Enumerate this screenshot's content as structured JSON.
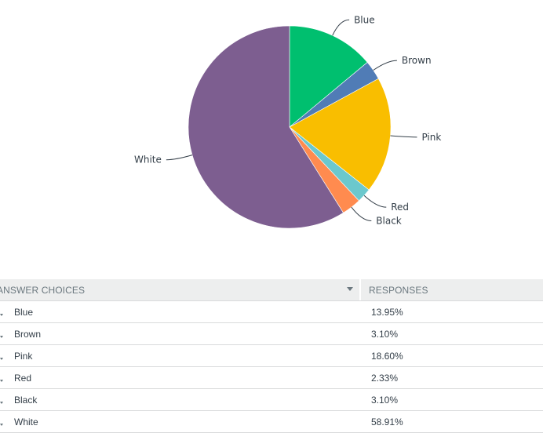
{
  "chart_data": {
    "type": "pie",
    "categories": [
      "Blue",
      "Brown",
      "Pink",
      "Red",
      "Black",
      "White"
    ],
    "values": [
      13.95,
      3.1,
      18.6,
      2.33,
      3.1,
      58.91
    ],
    "colors": [
      "#00bf6f",
      "#507cb6",
      "#f9be00",
      "#6bc8cd",
      "#ff8b4f",
      "#7d5e90"
    ],
    "title": "",
    "legend": "none"
  },
  "table": {
    "headers": {
      "choices": "Answer Choices",
      "responses": "Responses"
    },
    "rows": [
      {
        "label": "Blue",
        "value": "13.95%"
      },
      {
        "label": "Brown",
        "value": "3.10%"
      },
      {
        "label": "Pink",
        "value": "18.60%"
      },
      {
        "label": "Red",
        "value": "2.33%"
      },
      {
        "label": "Black",
        "value": "3.10%"
      },
      {
        "label": "White",
        "value": "58.91%"
      }
    ]
  },
  "icons": {
    "sort": "sort-down-icon",
    "row_expand": "caret-down-icon"
  }
}
